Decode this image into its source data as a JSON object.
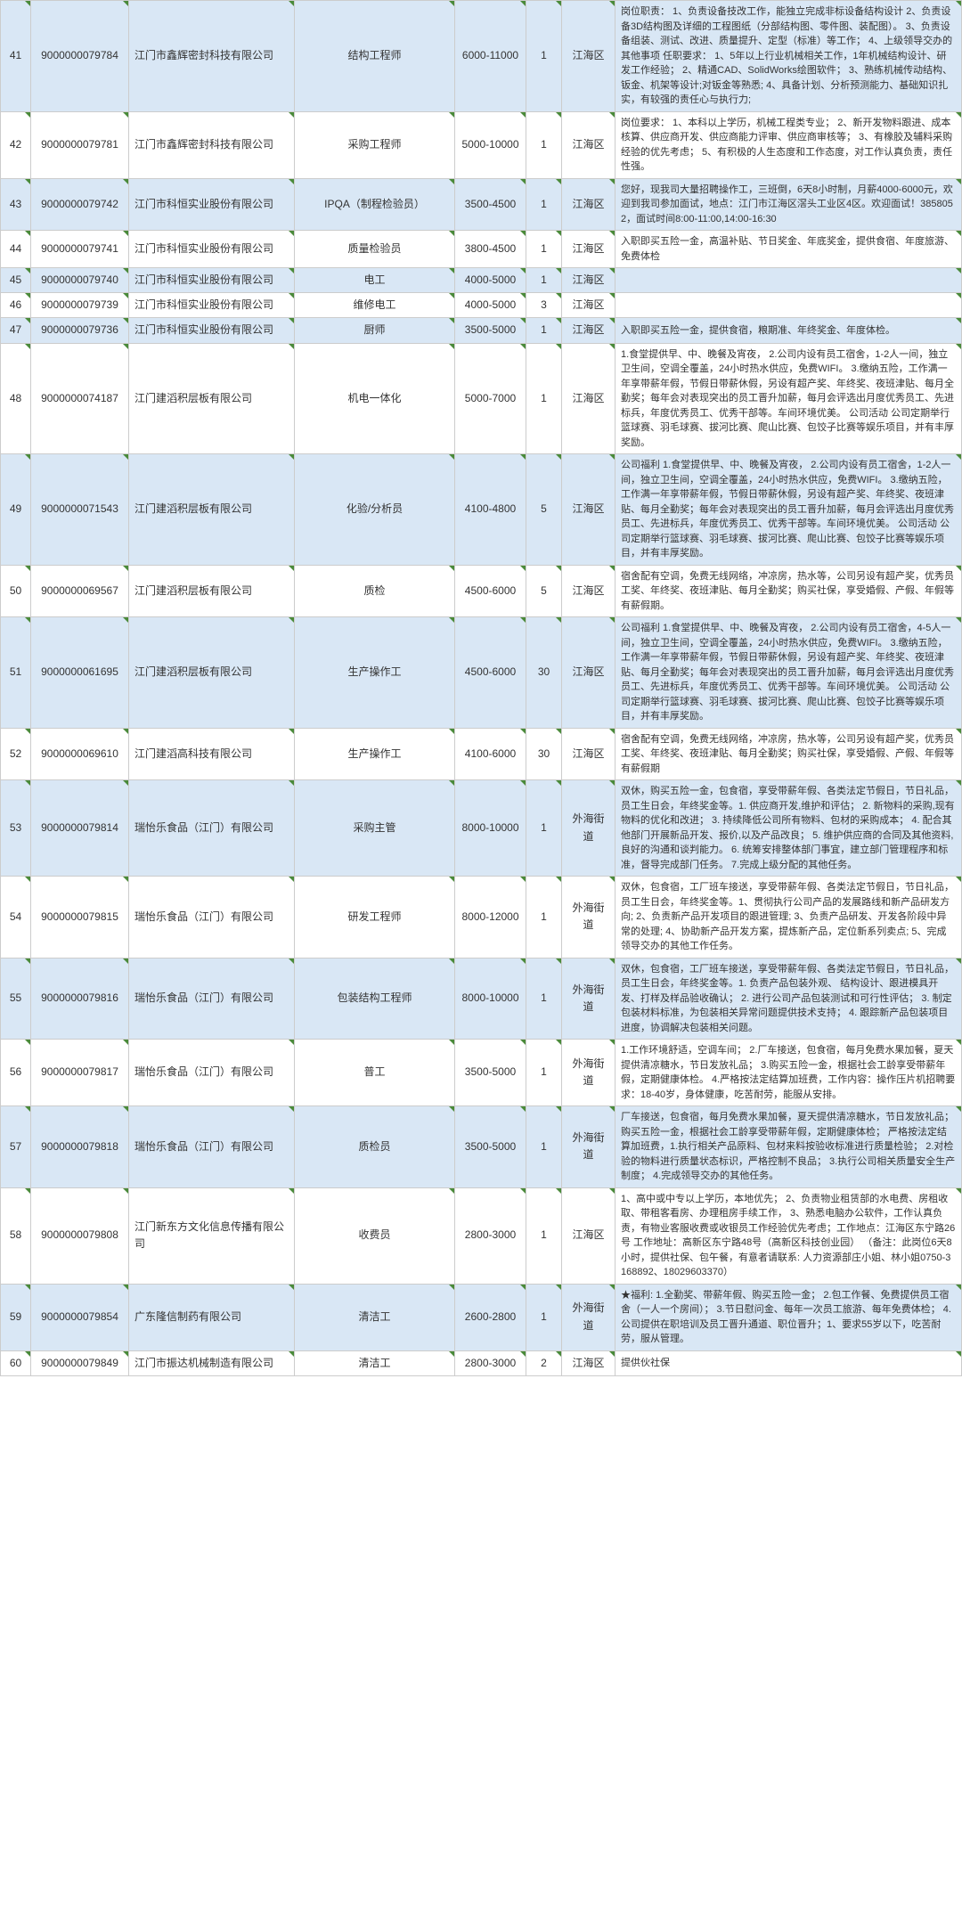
{
  "rows": [
    {
      "n": "41",
      "id": "9000000079784",
      "co": "江门市鑫辉密封科技有限公司",
      "pos": "结构工程师",
      "sal": "6000-11000",
      "cnt": "1",
      "area": "江海区",
      "desc": "岗位职责：\n1、负责设备技改工作，能独立完成非标设备结构设计\n2、负责设备3D结构图及详细的工程图纸（分部结构图、零件图、装配图）。\n3、负责设备组装、测试、改进、质量提升、定型（标准）等工作；\n4、上级领导交办的其他事项\n任职要求：\n1、5年以上行业机械相关工作，1年机械结构设计、研发工作经验；\n2、精通CAD、SolidWorks绘图软件；\n3、熟练机械传动结构、钣金、机架等设计;对钣金等熟悉;\n4、具备计划、分析预测能力、基础知识扎实，有较强的责任心与执行力;",
      "alt": true
    },
    {
      "n": "42",
      "id": "9000000079781",
      "co": "江门市鑫辉密封科技有限公司",
      "pos": "采购工程师",
      "sal": "5000-10000",
      "cnt": "1",
      "area": "江海区",
      "desc": "岗位要求：\n1、本科以上学历，机械工程类专业；\n2、新开发物料跟进、成本核算、供应商开发、供应商能力评审、供应商审核等；\n3、有橡胶及辅料采购经验的优先考虑；\n5、有积极的人生态度和工作态度，对工作认真负责，责任性强。",
      "alt": false
    },
    {
      "n": "43",
      "id": "9000000079742",
      "co": "江门市科恒实业股份有限公司",
      "pos": "IPQA（制程检验员）",
      "sal": "3500-4500",
      "cnt": "1",
      "area": "江海区",
      "desc": "您好，现我司大量招聘操作工，三班倒，6天8小时制，月薪4000-6000元，欢迎到我司参加面试，地点：江门市江海区滘头工业区4区。欢迎面试！3858052，面试时间8:00-11:00,14:00-16:30",
      "alt": true
    },
    {
      "n": "44",
      "id": "9000000079741",
      "co": "江门市科恒实业股份有限公司",
      "pos": "质量检验员",
      "sal": "3800-4500",
      "cnt": "1",
      "area": "江海区",
      "desc": "入职即买五险一金，高温补贴、节日奖金、年底奖金，提供食宿、年度旅游、免费体检",
      "alt": false
    },
    {
      "n": "45",
      "id": "9000000079740",
      "co": "江门市科恒实业股份有限公司",
      "pos": "电工",
      "sal": "4000-5000",
      "cnt": "1",
      "area": "江海区",
      "desc": "",
      "alt": true
    },
    {
      "n": "46",
      "id": "9000000079739",
      "co": "江门市科恒实业股份有限公司",
      "pos": "维修电工",
      "sal": "4000-5000",
      "cnt": "3",
      "area": "江海区",
      "desc": "",
      "alt": false
    },
    {
      "n": "47",
      "id": "9000000079736",
      "co": "江门市科恒实业股份有限公司",
      "pos": "厨师",
      "sal": "3500-5000",
      "cnt": "1",
      "area": "江海区",
      "desc": "入职即买五险一金，提供食宿，粮期准、年终奖金、年度体检。",
      "alt": true
    },
    {
      "n": "48",
      "id": "9000000074187",
      "co": "江门建滔积层板有限公司",
      "pos": "机电一体化",
      "sal": "5000-7000",
      "cnt": "1",
      "area": "江海区",
      "desc": "1.食堂提供早、中、晚餐及宵夜，\n2.公司内设有员工宿舍，1-2人一间，独立卫生间，空调全覆盖，24小时热水供应，免费WIFI。\n3.缴纳五险，工作满一年享带薪年假，节假日带薪休假，另设有超产奖、年终奖、夜班津贴、每月全勤奖；每年会对表现突出的员工晋升加薪，每月会评选出月度优秀员工、先进标兵，年度优秀员工、优秀干部等。车间环境优美。\n公司活动\n公司定期举行篮球赛、羽毛球赛、拔河比赛、爬山比赛、包饺子比赛等娱乐项目，并有丰厚奖励。",
      "alt": false
    },
    {
      "n": "49",
      "id": "9000000071543",
      "co": "江门建滔积层板有限公司",
      "pos": "化验/分析员",
      "sal": "4100-4800",
      "cnt": "5",
      "area": "江海区",
      "desc": "公司福利\n1.食堂提供早、中、晚餐及宵夜，\n2.公司内设有员工宿舍，1-2人一间，独立卫生间，空调全覆盖，24小时热水供应，免费WIFI。\n3.缴纳五险，工作满一年享带薪年假，节假日带薪休假，另设有超产奖、年终奖、夜班津贴、每月全勤奖；每年会对表现突出的员工晋升加薪，每月会评选出月度优秀员工、先进标兵，年度优秀员工、优秀干部等。车间环境优美。\n公司活动\n公司定期举行篮球赛、羽毛球赛、拔河比赛、爬山比赛、包饺子比赛等娱乐项目，并有丰厚奖励。",
      "alt": true
    },
    {
      "n": "50",
      "id": "9000000069567",
      "co": "江门建滔积层板有限公司",
      "pos": "质检",
      "sal": "4500-6000",
      "cnt": "5",
      "area": "江海区",
      "desc": "宿舍配有空调，免费无线网络，冲凉房，热水等，公司另设有超产奖，优秀员工奖、年终奖、夜班津贴、每月全勤奖；购买社保，享受婚假、产假、年假等有薪假期。",
      "alt": false
    },
    {
      "n": "51",
      "id": "9000000061695",
      "co": "江门建滔积层板有限公司",
      "pos": "生产操作工",
      "sal": "4500-6000",
      "cnt": "30",
      "area": "江海区",
      "desc": "公司福利\n1.食堂提供早、中、晚餐及宵夜，\n2.公司内设有员工宿舍，4-5人一间，独立卫生间，空调全覆盖，24小时热水供应，免费WIFI。\n3.缴纳五险，工作满一年享带薪年假，节假日带薪休假，另设有超产奖、年终奖、夜班津贴、每月全勤奖；每年会对表现突出的员工晋升加薪，每月会评选出月度优秀员工、先进标兵，年度优秀员工、优秀干部等。车间环境优美。\n公司活动\n公司定期举行篮球赛、羽毛球赛、拔河比赛、爬山比赛、包饺子比赛等娱乐项目，并有丰厚奖励。",
      "alt": true
    },
    {
      "n": "52",
      "id": "9000000069610",
      "co": "江门建滔高科技有限公司",
      "pos": "生产操作工",
      "sal": "4100-6000",
      "cnt": "30",
      "area": "江海区",
      "desc": "宿舍配有空调，免费无线网络，冲凉房，热水等，公司另设有超产奖，优秀员工奖、年终奖、夜班津贴、每月全勤奖；购买社保，享受婚假、产假、年假等有薪假期",
      "alt": false
    },
    {
      "n": "53",
      "id": "9000000079814",
      "co": "瑞怡乐食品（江门）有限公司",
      "pos": "采购主管",
      "sal": "8000-10000",
      "cnt": "1",
      "area": "外海街道",
      "desc": "双休，购买五险一金，包食宿，享受带薪年假、各类法定节假日，节日礼品，员工生日会，年终奖金等。1. 供应商开发,维护和评估；\n2. 新物料的采购,现有物料的优化和改进；\n3. 持续降低公司所有物料、包材的采购成本；\n4. 配合其他部门开展新品开发、报价,以及产品改良；\n5. 维护供应商的合同及其他资料,良好的沟通和谈判能力。\n6. 统筹安排整体部门事宜，建立部门管理程序和标准，督导完成部门任务。\n7.完成上级分配的其他任务。",
      "alt": true
    },
    {
      "n": "54",
      "id": "9000000079815",
      "co": "瑞怡乐食品（江门）有限公司",
      "pos": "研发工程师",
      "sal": "8000-12000",
      "cnt": "1",
      "area": "外海街道",
      "desc": "双休，包食宿，工厂班车接送，享受带薪年假、各类法定节假日，节日礼品，员工生日会，年终奖金等。1、贯彻执行公司产品的发展路线和新产品研发方向;\n2、负责新产品开发项目的跟进管理;\n3、负责产品研发、开发各阶段中异常的处理;\n4、协助新产品开发方案，提炼新产品，定位新系列卖点;\n5、完成领导交办的其他工作任务。",
      "alt": false
    },
    {
      "n": "55",
      "id": "9000000079816",
      "co": "瑞怡乐食品（江门）有限公司",
      "pos": "包装结构工程师",
      "sal": "8000-10000",
      "cnt": "1",
      "area": "外海街道",
      "desc": "双休，包食宿，工厂班车接送，享受带薪年假、各类法定节假日，节日礼品，员工生日会，年终奖金等。1. 负责产品包装外观、 结构设计、跟进模具开发、打样及样品验收确认；\n2. 进行公司产品包装测试和可行性评估；\n3. 制定包装材料标准，为包装相关异常问题提供技术支持；\n4. 跟踪新产品包装项目进度，协调解决包装相关问题。",
      "alt": true
    },
    {
      "n": "56",
      "id": "9000000079817",
      "co": "瑞怡乐食品（江门）有限公司",
      "pos": "普工",
      "sal": "3500-5000",
      "cnt": "1",
      "area": "外海街道",
      "desc": "1.工作环境舒适，空调车间；\n2.厂车接送，包食宿，每月免费水果加餐，夏天提供清凉糖水，节日发放礼品；\n3.购买五险一金，根据社会工龄享受带薪年假，定期健康体检。\n4.严格按法定结算加班费，工作内容：操作压片机招聘要求：18-40岁，身体健康，吃苦耐劳，能服从安排。",
      "alt": false
    },
    {
      "n": "57",
      "id": "9000000079818",
      "co": "瑞怡乐食品（江门）有限公司",
      "pos": "质检员",
      "sal": "3500-5000",
      "cnt": "1",
      "area": "外海街道",
      "desc": "厂车接送，包食宿，每月免费水果加餐，夏天提供清凉糖水，节日发放礼品；\n购买五险一金，根据社会工龄享受带薪年假，定期健康体检；\n严格按法定结算加班费，1.执行相关产品原料、包材来料按验收标准进行质量检验；\n2.对检验的物料进行质量状态标识，严格控制不良品；\n3.执行公司相关质量安全生产制度；\n4.完成领导交办的其他任务。",
      "alt": true
    },
    {
      "n": "58",
      "id": "9000000079808",
      "co": "江门新东方文化信息传播有限公司",
      "pos": "收费员",
      "sal": "2800-3000",
      "cnt": "1",
      "area": "江海区",
      "desc": "1、高中或中专以上学历，本地优先；\n2、负责物业租赁部的水电费、房租收取、带租客看房、办理租房手续工作，\n3、熟悉电脑办公软件，工作认真负责，有物业客服收费或收银员工作经验优先考虑；工作地点：江海区东宁路26号\n工作地址：高新区东宁路48号（高新区科技创业园）\n（备注：此岗位6天8小时，提供社保、包午餐，有意者请联系: 人力资源部庄小姐、林小姐0750-3168892、18029603370）",
      "alt": false
    },
    {
      "n": "59",
      "id": "9000000079854",
      "co": "广东隆信制药有限公司",
      "pos": "清洁工",
      "sal": "2600-2800",
      "cnt": "1",
      "area": "外海街道",
      "desc": "★福利:\n1.全勤奖、带薪年假、购买五险一金；\n2.包工作餐、免费提供员工宿舍（一人一个房间）；\n3.节日慰问金、每年一次员工旅游、每年免费体检；\n4.公司提供在职培训及员工晋升通道、职位晋升；1、要求55岁以下，吃苦耐劳，服从管理。",
      "alt": true
    },
    {
      "n": "60",
      "id": "9000000079849",
      "co": "江门市振达机械制造有限公司",
      "pos": "清洁工",
      "sal": "2800-3000",
      "cnt": "2",
      "area": "江海区",
      "desc": "提供伙社保",
      "alt": false
    }
  ]
}
